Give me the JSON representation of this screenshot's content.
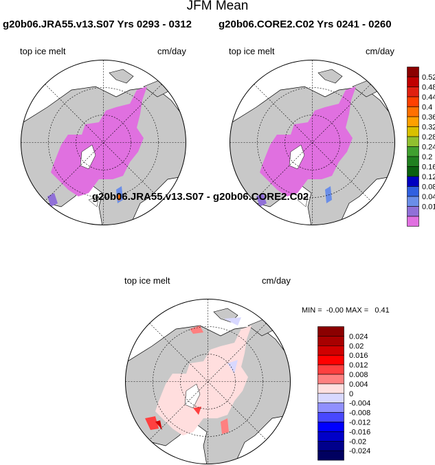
{
  "title": "JFM Mean",
  "panels": [
    {
      "title": "g20b06.JRA55.v13.S07  Yrs 0293 - 0312",
      "left_label": "top ice melt",
      "right_label": "cm/day"
    },
    {
      "title": "g20b06.CORE2.C02  Yrs 0241 - 0260",
      "left_label": "top ice melt",
      "right_label": "cm/day"
    }
  ],
  "diff": {
    "title": "g20b06.JRA55.v13.S07 - g20b06.CORE2.C02",
    "left_label": "top ice melt",
    "right_label": "cm/day",
    "minmax": "MIN =  -0.00 MAX =   0.41"
  },
  "colorbar_top": {
    "labels": [
      "0.52",
      "0.48",
      "0.44",
      "0.4",
      "0.36",
      "0.32",
      "0.28",
      "0.24",
      "0.2",
      "0.16",
      "0.12",
      "0.08",
      "0.04",
      "0.01"
    ],
    "colors": [
      "#8b0000",
      "#c00000",
      "#e02010",
      "#ff4000",
      "#ff7000",
      "#ffa000",
      "#d8c000",
      "#90c030",
      "#40a030",
      "#208020",
      "#0a6010",
      "#0000c0",
      "#3060e0",
      "#6a8ee8",
      "#9070d8",
      "#e070e0"
    ]
  },
  "colorbar_diff": {
    "labels": [
      "0.024",
      "0.02",
      "0.016",
      "0.012",
      "0.008",
      "0.004",
      "0",
      "-0.004",
      "-0.008",
      "-0.012",
      "-0.016",
      "-0.02",
      "-0.024"
    ],
    "colors": [
      "#8b0000",
      "#a80000",
      "#d00000",
      "#ff0000",
      "#ff4040",
      "#ff8080",
      "#ffe0e0",
      "#d8d8ff",
      "#9090ff",
      "#4848ff",
      "#0000ff",
      "#0000c8",
      "#00008c",
      "#000060"
    ]
  },
  "map_colors": {
    "land": "#c8c8c8",
    "ocean": "#ffffff",
    "melt": "#e070e0",
    "diff_melt": "#ffdede"
  }
}
